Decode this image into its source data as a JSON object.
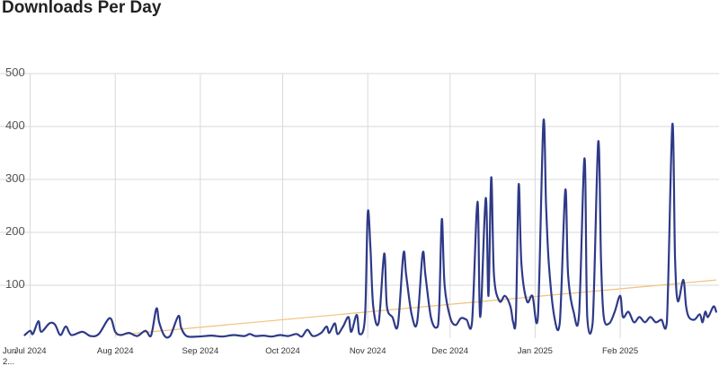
{
  "page": {
    "title": "Downloads Per Day"
  },
  "chart_data": {
    "type": "line",
    "title": "Downloads Per Day",
    "xlabel": "",
    "ylabel": "",
    "ylim": [
      0,
      500
    ],
    "yticks": [
      100,
      200,
      300,
      400,
      500
    ],
    "grid": true,
    "legend": "none",
    "colors": {
      "series": "#2e3a87",
      "trend": "#f0c27a",
      "grid": "#d9d9d9"
    },
    "x_ticks": [
      {
        "date": "2024-06-29",
        "label": "Jun 2..."
      },
      {
        "date": "2024-07-01",
        "label": "Jul 2024"
      },
      {
        "date": "2024-08-01",
        "label": "Aug 2024"
      },
      {
        "date": "2024-09-01",
        "label": "Sep 2024"
      },
      {
        "date": "2024-10-01",
        "label": "Oct 2024"
      },
      {
        "date": "2024-11-01",
        "label": "Nov 2024"
      },
      {
        "date": "2024-12-01",
        "label": "Dec 2024"
      },
      {
        "date": "2025-01-01",
        "label": "Jan 2025"
      },
      {
        "date": "2025-02-01",
        "label": "Feb 2025"
      }
    ],
    "series": [
      {
        "values": [
          [
            "2024-06-29",
            6
          ],
          [
            "2024-07-01",
            14
          ],
          [
            "2024-07-02",
            8
          ],
          [
            "2024-07-04",
            32
          ],
          [
            "2024-07-05",
            12
          ],
          [
            "2024-07-08",
            28
          ],
          [
            "2024-07-10",
            26
          ],
          [
            "2024-07-12",
            6
          ],
          [
            "2024-07-14",
            22
          ],
          [
            "2024-07-16",
            6
          ],
          [
            "2024-07-20",
            12
          ],
          [
            "2024-07-23",
            4
          ],
          [
            "2024-07-26",
            8
          ],
          [
            "2024-07-30",
            38
          ],
          [
            "2024-08-01",
            12
          ],
          [
            "2024-08-03",
            6
          ],
          [
            "2024-08-06",
            10
          ],
          [
            "2024-08-09",
            4
          ],
          [
            "2024-08-12",
            14
          ],
          [
            "2024-08-14",
            4
          ],
          [
            "2024-08-16",
            56
          ],
          [
            "2024-08-17",
            30
          ],
          [
            "2024-08-19",
            4
          ],
          [
            "2024-08-21",
            4
          ],
          [
            "2024-08-24",
            42
          ],
          [
            "2024-08-25",
            20
          ],
          [
            "2024-08-27",
            4
          ],
          [
            "2024-08-31",
            3
          ],
          [
            "2024-09-05",
            5
          ],
          [
            "2024-09-09",
            3
          ],
          [
            "2024-09-13",
            6
          ],
          [
            "2024-09-17",
            4
          ],
          [
            "2024-09-19",
            8
          ],
          [
            "2024-09-21",
            4
          ],
          [
            "2024-09-24",
            5
          ],
          [
            "2024-09-27",
            3
          ],
          [
            "2024-09-30",
            6
          ],
          [
            "2024-10-03",
            4
          ],
          [
            "2024-10-06",
            8
          ],
          [
            "2024-10-08",
            3
          ],
          [
            "2024-10-10",
            16
          ],
          [
            "2024-10-12",
            4
          ],
          [
            "2024-10-15",
            10
          ],
          [
            "2024-10-17",
            22
          ],
          [
            "2024-10-18",
            10
          ],
          [
            "2024-10-20",
            28
          ],
          [
            "2024-10-21",
            8
          ],
          [
            "2024-10-23",
            22
          ],
          [
            "2024-10-25",
            40
          ],
          [
            "2024-10-26",
            12
          ],
          [
            "2024-10-28",
            44
          ],
          [
            "2024-10-29",
            8
          ],
          [
            "2024-10-31",
            40
          ],
          [
            "2024-11-01",
            237
          ],
          [
            "2024-11-02",
            170
          ],
          [
            "2024-11-03",
            60
          ],
          [
            "2024-11-05",
            30
          ],
          [
            "2024-11-07",
            160
          ],
          [
            "2024-11-08",
            60
          ],
          [
            "2024-11-10",
            40
          ],
          [
            "2024-11-12",
            25
          ],
          [
            "2024-11-14",
            160
          ],
          [
            "2024-11-15",
            120
          ],
          [
            "2024-11-17",
            45
          ],
          [
            "2024-11-19",
            30
          ],
          [
            "2024-11-21",
            160
          ],
          [
            "2024-11-22",
            120
          ],
          [
            "2024-11-24",
            40
          ],
          [
            "2024-11-26",
            20
          ],
          [
            "2024-11-27",
            50
          ],
          [
            "2024-11-28",
            225
          ],
          [
            "2024-11-29",
            100
          ],
          [
            "2024-12-01",
            40
          ],
          [
            "2024-12-03",
            25
          ],
          [
            "2024-12-05",
            38
          ],
          [
            "2024-12-07",
            35
          ],
          [
            "2024-12-09",
            30
          ],
          [
            "2024-12-11",
            258
          ],
          [
            "2024-12-12",
            40
          ],
          [
            "2024-12-14",
            265
          ],
          [
            "2024-12-15",
            80
          ],
          [
            "2024-12-16",
            304
          ],
          [
            "2024-12-17",
            120
          ],
          [
            "2024-12-19",
            70
          ],
          [
            "2024-12-21",
            80
          ],
          [
            "2024-12-23",
            60
          ],
          [
            "2024-12-24",
            30
          ],
          [
            "2024-12-25",
            40
          ],
          [
            "2024-12-26",
            290
          ],
          [
            "2024-12-27",
            140
          ],
          [
            "2024-12-29",
            70
          ],
          [
            "2024-12-31",
            80
          ],
          [
            "2025-01-02",
            40
          ],
          [
            "2025-01-04",
            408
          ],
          [
            "2025-01-05",
            250
          ],
          [
            "2025-01-06",
            140
          ],
          [
            "2025-01-08",
            40
          ],
          [
            "2025-01-10",
            30
          ],
          [
            "2025-01-12",
            280
          ],
          [
            "2025-01-13",
            120
          ],
          [
            "2025-01-15",
            50
          ],
          [
            "2025-01-17",
            45
          ],
          [
            "2025-01-19",
            340
          ],
          [
            "2025-01-20",
            40
          ],
          [
            "2025-01-22",
            30
          ],
          [
            "2025-01-24",
            371
          ],
          [
            "2025-01-25",
            150
          ],
          [
            "2025-01-26",
            40
          ],
          [
            "2025-01-28",
            28
          ],
          [
            "2025-01-30",
            50
          ],
          [
            "2025-02-01",
            80
          ],
          [
            "2025-02-02",
            40
          ],
          [
            "2025-02-04",
            50
          ],
          [
            "2025-02-06",
            30
          ],
          [
            "2025-02-08",
            40
          ],
          [
            "2025-02-10",
            30
          ],
          [
            "2025-02-12",
            40
          ],
          [
            "2025-02-14",
            30
          ],
          [
            "2025-02-16",
            35
          ],
          [
            "2025-02-18",
            30
          ],
          [
            "2025-02-20",
            404
          ],
          [
            "2025-02-21",
            150
          ],
          [
            "2025-02-22",
            70
          ],
          [
            "2025-02-24",
            110
          ],
          [
            "2025-02-25",
            60
          ],
          [
            "2025-02-26",
            40
          ],
          [
            "2025-02-28",
            35
          ],
          [
            "2025-03-02",
            45
          ],
          [
            "2025-03-03",
            30
          ],
          [
            "2025-03-04",
            50
          ],
          [
            "2025-03-05",
            40
          ],
          [
            "2025-03-07",
            60
          ],
          [
            "2025-03-08",
            50
          ]
        ]
      }
    ],
    "trendline": {
      "values": [
        [
          "2024-08-01",
          6
        ],
        [
          "2025-03-08",
          110
        ]
      ]
    }
  }
}
